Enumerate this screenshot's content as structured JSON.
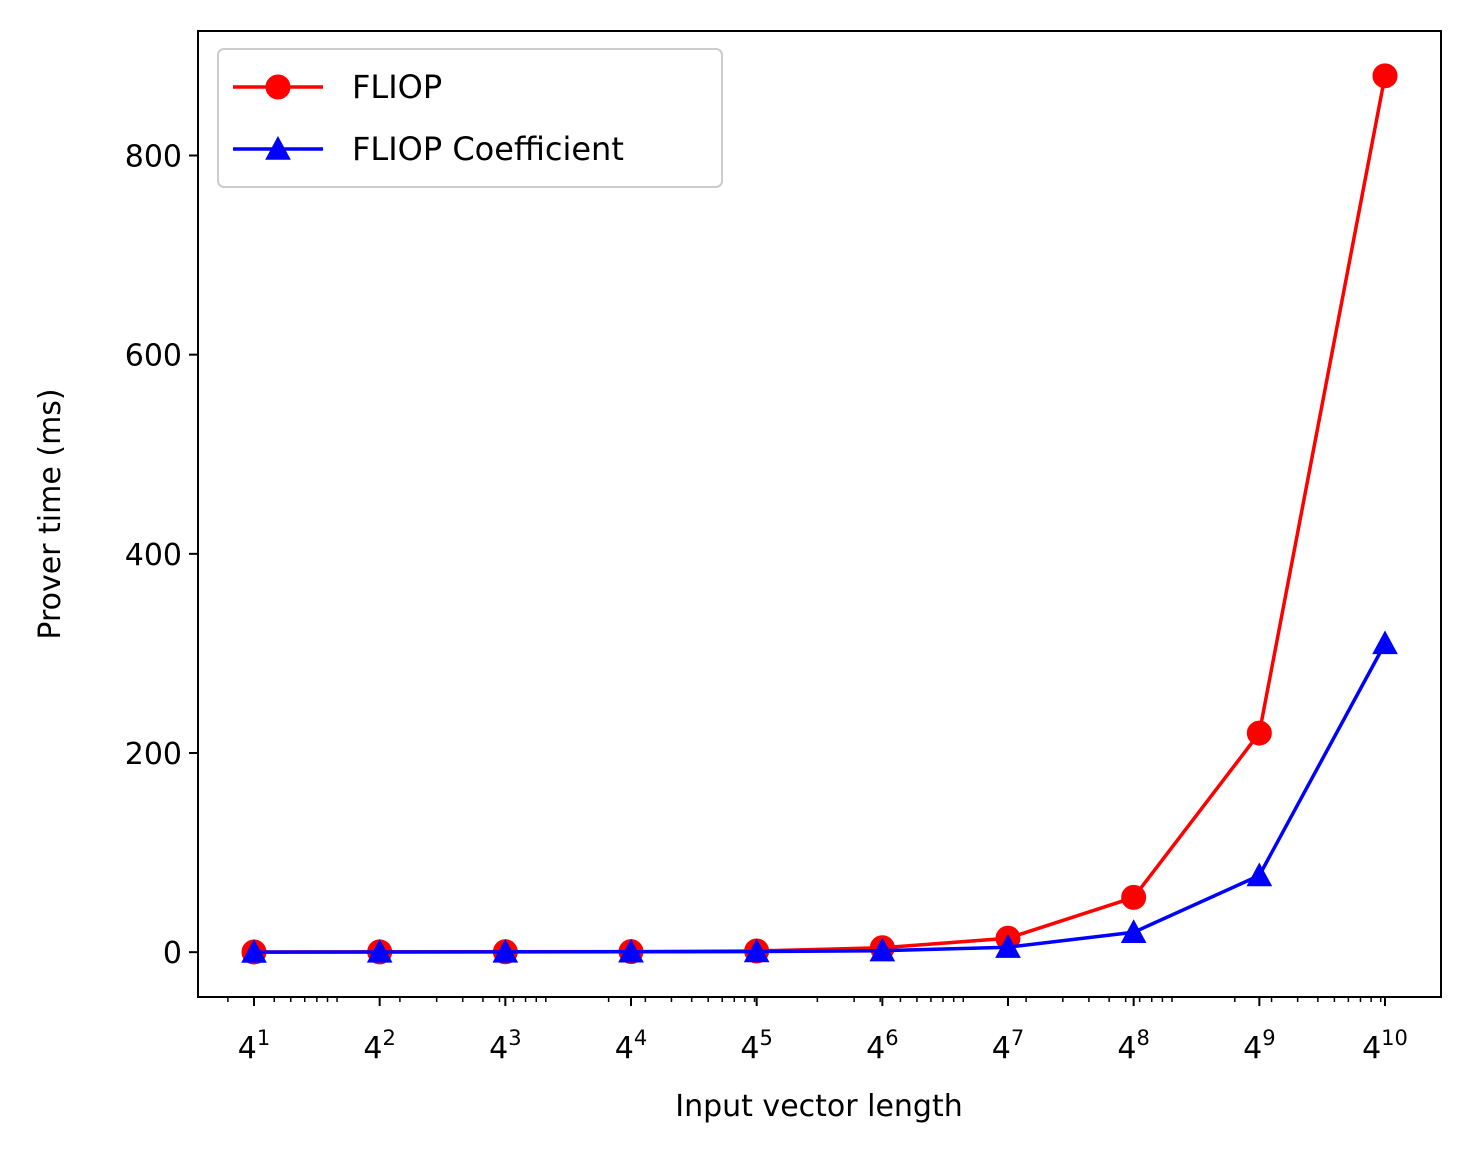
{
  "chart_data": {
    "type": "line",
    "title": "",
    "xlabel": "Input vector length",
    "ylabel": "Prover time (ms)",
    "x_scale": "log",
    "x_base": 4,
    "x": [
      4,
      16,
      64,
      256,
      1024,
      4096,
      16384,
      65536,
      262144,
      1048576
    ],
    "x_tick_labels": [
      {
        "base": "4",
        "exp": "1"
      },
      {
        "base": "4",
        "exp": "2"
      },
      {
        "base": "4",
        "exp": "3"
      },
      {
        "base": "4",
        "exp": "4"
      },
      {
        "base": "4",
        "exp": "5"
      },
      {
        "base": "4",
        "exp": "6"
      },
      {
        "base": "4",
        "exp": "7"
      },
      {
        "base": "4",
        "exp": "8"
      },
      {
        "base": "4",
        "exp": "9"
      },
      {
        "base": "4",
        "exp": "10"
      }
    ],
    "ylim": [
      -45,
      925
    ],
    "y_ticks": [
      0,
      200,
      400,
      600,
      800
    ],
    "grid": false,
    "legend_position": "upper-left",
    "series": [
      {
        "name": "FLIOP",
        "color": "#ff0000",
        "marker": "circle",
        "values": [
          0.2,
          0.3,
          0.4,
          0.6,
          1.2,
          4.5,
          14,
          55,
          220,
          880
        ]
      },
      {
        "name": "FLIOP Coefficient",
        "color": "#0000ff",
        "marker": "triangle",
        "values": [
          0.1,
          0.2,
          0.3,
          0.4,
          0.6,
          1.5,
          5,
          20,
          77,
          310
        ]
      }
    ]
  }
}
